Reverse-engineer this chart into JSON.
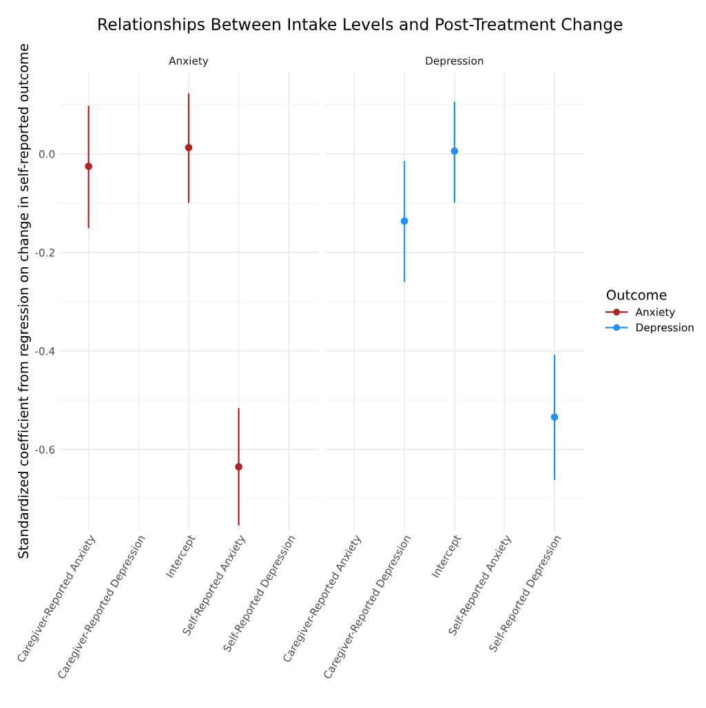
{
  "chart_data": [
    {
      "type": "scatter",
      "title": "Relationships Between Intake Levels and Post-Treatment Change",
      "subtitle": "Anxiety",
      "ylabel": "Standardized coefficient from regression on change in self-reported outcome",
      "categories": [
        "Caregiver-Reported Anxiety",
        "Caregiver-Reported Depression",
        "Intercept",
        "Self-Reported Anxiety",
        "Self-Reported Depression"
      ],
      "series": [
        {
          "name": "Anxiety",
          "color": "#b22222",
          "values": [
            -0.025,
            null,
            0.013,
            -0.635,
            null
          ],
          "errors": [
            [
              -0.151,
              0.098
            ],
            null,
            [
              -0.099,
              0.123
            ],
            [
              -0.754,
              -0.516
            ],
            null
          ]
        }
      ],
      "ylim": [
        -0.764,
        0.166
      ],
      "yticks": [
        -0.6,
        -0.4,
        -0.2,
        {
          "value": 0,
          "label": "0.0"
        }
      ],
      "grid": true,
      "marker": "circle",
      "legend": "right",
      "legend_title": "Outcome"
    },
    {
      "type": "scatter",
      "subtitle": "Depression",
      "categories": [
        "Caregiver-Reported Anxiety",
        "Caregiver-Reported Depression",
        "Intercept",
        "Self-Reported Anxiety",
        "Self-Reported Depression"
      ],
      "series": [
        {
          "name": "Depression",
          "color": "#1e90ff",
          "values": [
            null,
            -0.136,
            0.006,
            null,
            -0.534
          ],
          "errors": [
            null,
            [
              -0.26,
              -0.014
            ],
            [
              -0.099,
              0.106
            ],
            null,
            [
              -0.662,
              -0.408
            ]
          ]
        }
      ],
      "ylim": [
        -0.764,
        0.166
      ],
      "yticks": [
        -0.6,
        -0.4,
        -0.2,
        0
      ],
      "grid": true,
      "marker": "circle",
      "legend": "right",
      "tick_labels": "x"
    }
  ]
}
